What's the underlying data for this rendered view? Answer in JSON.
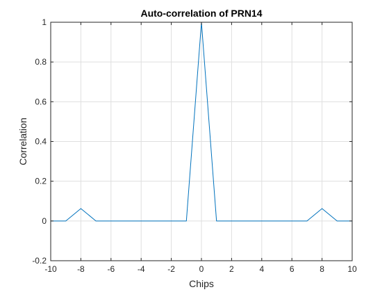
{
  "colors": {
    "series": "#0072bd",
    "grid": "#dfdfdf",
    "axis": "#262626",
    "background": "#ffffff"
  },
  "chart_data": {
    "type": "line",
    "title": "Auto-correlation of PRN14",
    "xlabel": "Chips",
    "ylabel": "Correlation",
    "xlim": [
      -10,
      10
    ],
    "ylim": [
      -0.2,
      1
    ],
    "xticks": [
      -10,
      -8,
      -6,
      -4,
      -2,
      0,
      2,
      4,
      6,
      8,
      10
    ],
    "yticks": [
      -0.2,
      0,
      0.2,
      0.4,
      0.6,
      0.8,
      1
    ],
    "xtick_labels": [
      "-10",
      "-8",
      "-6",
      "-4",
      "-2",
      "0",
      "2",
      "4",
      "6",
      "8",
      "10"
    ],
    "ytick_labels": [
      "-0.2",
      "0",
      "0.2",
      "0.4",
      "0.6",
      "0.8",
      "1"
    ],
    "grid": true,
    "box": true,
    "series": [
      {
        "x": [
          -10,
          -9,
          -8,
          -7,
          -6,
          -5,
          -4,
          -3,
          -2,
          -1,
          0,
          1,
          2,
          3,
          4,
          5,
          6,
          7,
          8,
          9,
          10
        ],
        "y": [
          0,
          0,
          0.0625,
          0,
          0,
          0,
          0,
          0,
          0,
          0,
          1,
          0,
          0,
          0,
          0,
          0,
          0,
          0,
          0.0625,
          0,
          0
        ]
      }
    ]
  }
}
